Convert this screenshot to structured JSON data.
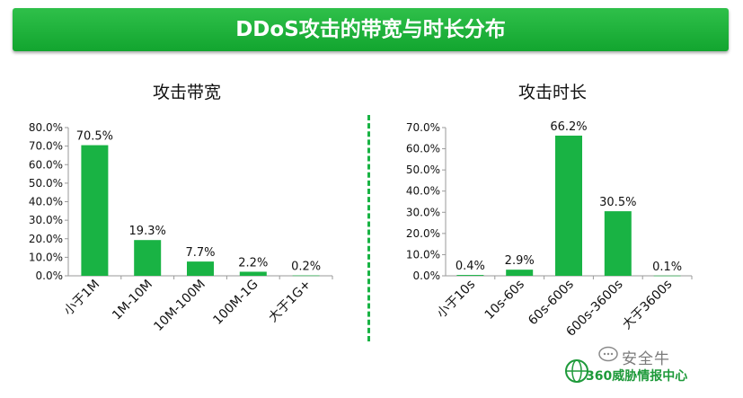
{
  "banner": {
    "title": "DDoS攻击的带宽与时长分布"
  },
  "colors": {
    "bar": "#19b344",
    "banner": "#19b344",
    "axis": "#9a9a9a"
  },
  "chart_data": [
    {
      "type": "bar",
      "title": "攻击带宽",
      "categories": [
        "小于1M",
        "1M-10M",
        "10M-100M",
        "100M-1G",
        "大于1G+"
      ],
      "values": [
        70.5,
        19.3,
        7.7,
        2.2,
        0.2
      ],
      "value_labels": [
        "70.5%",
        "19.3%",
        "7.7%",
        "2.2%",
        "0.2%"
      ],
      "ylim": [
        0,
        80
      ],
      "yticks": [
        "0.0%",
        "10.0%",
        "20.0%",
        "30.0%",
        "40.0%",
        "50.0%",
        "60.0%",
        "70.0%",
        "80.0%"
      ],
      "xlabel": "",
      "ylabel": "",
      "grid": false
    },
    {
      "type": "bar",
      "title": "攻击时长",
      "categories": [
        "小于10s",
        "10s-60s",
        "60s-600s",
        "600s-3600s",
        "大于3600s"
      ],
      "values": [
        0.4,
        2.9,
        66.2,
        30.5,
        0.1
      ],
      "value_labels": [
        "0.4%",
        "2.9%",
        "66.2%",
        "30.5%",
        "0.1%"
      ],
      "ylim": [
        0,
        70
      ],
      "yticks": [
        "0.0%",
        "10.0%",
        "20.0%",
        "30.0%",
        "40.0%",
        "50.0%",
        "60.0%",
        "70.0%"
      ],
      "xlabel": "",
      "ylabel": "",
      "grid": false
    }
  ],
  "watermark": {
    "top": "安全牛",
    "bottom": "360威胁情报中心"
  }
}
